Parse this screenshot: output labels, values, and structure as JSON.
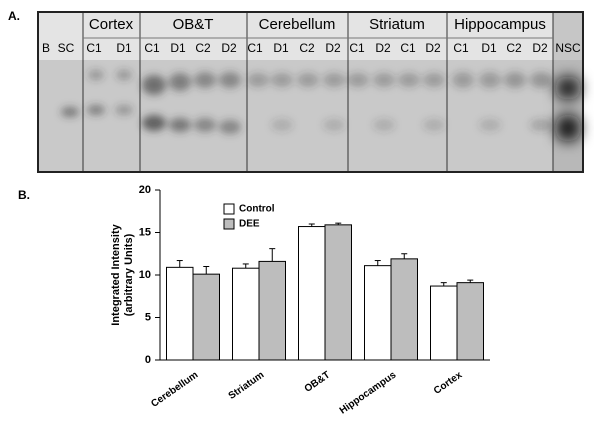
{
  "panel_labels": [
    "A.",
    "B."
  ],
  "gel": {
    "groups": [
      "Cortex",
      "OB&T",
      "Cerebellum",
      "Striatum",
      "Hippocampus"
    ],
    "lanes": [
      "B",
      "SC",
      "C1",
      "D1",
      "C1",
      "D1",
      "C2",
      "D2",
      "C1",
      "D1",
      "C2",
      "D2",
      "C1",
      "D2",
      "C1",
      "D2",
      "C1",
      "D1",
      "C2",
      "D2",
      "NSC"
    ]
  },
  "chart_data": {
    "type": "bar",
    "ylabel": [
      "Integrated Intensity",
      "(arbitrary Units)"
    ],
    "categories": [
      "Cerebellum",
      "Striatum",
      "OB&T",
      "Hippocampus",
      "Cortex"
    ],
    "series": [
      {
        "name": "Control",
        "color": "#ffffff",
        "values": [
          10.9,
          10.8,
          15.7,
          11.1,
          8.7
        ],
        "errors": [
          0.8,
          0.5,
          0.3,
          0.6,
          0.4
        ]
      },
      {
        "name": "DEE",
        "color": "#bdbdbd",
        "values": [
          10.1,
          11.6,
          15.9,
          11.9,
          9.1
        ],
        "errors": [
          0.9,
          1.5,
          0.2,
          0.6,
          0.3
        ]
      }
    ],
    "ylim": [
      0,
      20
    ],
    "yticks": [
      0,
      5,
      10,
      15,
      20
    ],
    "legend": "upper-left"
  }
}
